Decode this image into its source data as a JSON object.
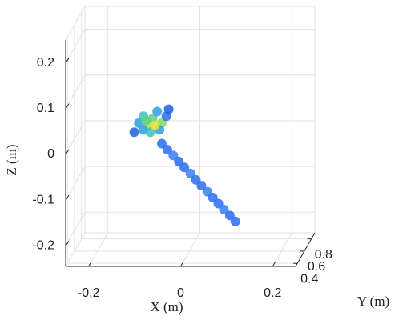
{
  "chart_data": {
    "type": "scatter3d",
    "xlabel": "X (m)",
    "ylabel": "Y (m)",
    "zlabel": "Z (m)",
    "xlim": [
      -0.25,
      0.25
    ],
    "ylim": [
      0.35,
      0.9
    ],
    "zlim": [
      -0.245,
      0.25
    ],
    "xticks": [
      -0.2,
      0,
      0.2
    ],
    "yticks": [
      0.4,
      0.6,
      0.8
    ],
    "zticks": [
      -0.2,
      -0.1,
      0,
      0.1,
      0.2
    ],
    "grid": true,
    "x": [
      -0.06,
      -0.048,
      -0.035,
      -0.023,
      -0.011,
      0.002,
      0.014,
      0.026,
      0.039,
      0.051,
      0.063,
      0.075,
      0.088,
      0.1,
      -0.12,
      -0.11,
      -0.1,
      -0.09,
      -0.08,
      -0.07,
      -0.06,
      -0.05,
      -0.1,
      -0.085,
      -0.065,
      -0.045,
      -0.095,
      -0.075
    ],
    "y": [
      0.6,
      0.6,
      0.6,
      0.6,
      0.6,
      0.6,
      0.6,
      0.6,
      0.6,
      0.6,
      0.6,
      0.6,
      0.6,
      0.6,
      0.6,
      0.6,
      0.6,
      0.6,
      0.6,
      0.6,
      0.6,
      0.6,
      0.6,
      0.6,
      0.6,
      0.6,
      0.6,
      0.6
    ],
    "z": [
      -0.01,
      -0.023,
      -0.036,
      -0.049,
      -0.062,
      -0.075,
      -0.089,
      -0.102,
      -0.115,
      -0.128,
      -0.141,
      -0.154,
      -0.167,
      -0.18,
      0.015,
      0.035,
      0.05,
      0.03,
      0.045,
      0.06,
      0.035,
      0.05,
      0.02,
      0.015,
      0.02,
      0.065,
      0.04,
      0.03
    ],
    "point_colors": [
      "#2b6cf0",
      "#2b6cf0",
      "#3a7cf5",
      "#2b6cf0",
      "#2b6cf0",
      "#3a7cf5",
      "#2b6cf0",
      "#2b6cf0",
      "#3a7cf5",
      "#2b6cf0",
      "#2b6cf0",
      "#3a7cf5",
      "#2b6cf0",
      "#2b6cf0",
      "#1f5fe0",
      "#2aa0e0",
      "#3fc0c0",
      "#b8e040",
      "#60d080",
      "#2aa0e0",
      "#8ad860",
      "#2b6cf0",
      "#2aa0e0",
      "#3fc0c0",
      "#2aa0e0",
      "#1f5fe0",
      "#60d080",
      "#d8e830"
    ]
  }
}
